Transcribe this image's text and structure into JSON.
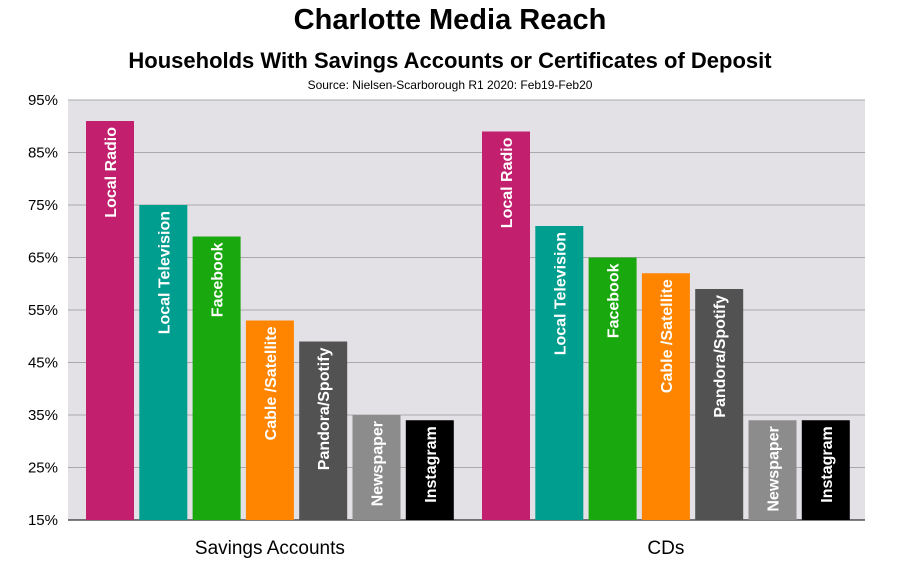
{
  "chart_data": {
    "type": "bar",
    "title": "Charlotte Media Reach",
    "subtitle": "Households With Savings Accounts or Certificates of Deposit",
    "source": "Source: Nielsen-Scarborough R1 2020: Feb19-Feb20",
    "categories": [
      "Savings Accounts",
      "CDs"
    ],
    "ylim": [
      15,
      95
    ],
    "yticks": [
      15,
      25,
      35,
      45,
      55,
      65,
      75,
      85,
      95
    ],
    "ytick_labels": [
      "15%",
      "25%",
      "35%",
      "45%",
      "55%",
      "65%",
      "75%",
      "85%",
      "95%"
    ],
    "grid": true,
    "series": [
      {
        "name": "Local Radio",
        "color": "#c2206e",
        "values": [
          91,
          89
        ]
      },
      {
        "name": "Local Television",
        "color": "#009e8f",
        "values": [
          75,
          71
        ]
      },
      {
        "name": "Facebook",
        "color": "#1aa80f",
        "values": [
          69,
          65
        ]
      },
      {
        "name": "Cable /Satellite",
        "color": "#ff8500",
        "values": [
          53,
          62
        ]
      },
      {
        "name": "Pandora/Spotify",
        "color": "#525252",
        "values": [
          49,
          59
        ]
      },
      {
        "name": "Newspaper",
        "color": "#8c8c8c",
        "values": [
          35,
          34
        ]
      },
      {
        "name": "Instagram",
        "color": "#000000",
        "values": [
          34,
          34
        ]
      }
    ],
    "colors": {
      "plot_background": "#e3e1e6",
      "gridline": "#a9a9a9"
    }
  }
}
